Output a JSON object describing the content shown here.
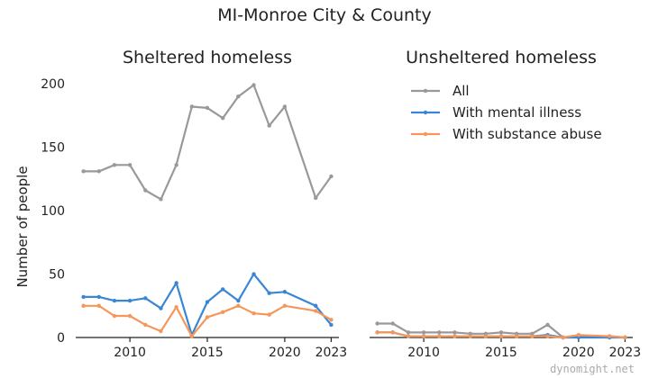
{
  "figure": {
    "title": "MI-Monroe City & County",
    "watermark": "dynomight.net"
  },
  "colors": {
    "All": "#999999",
    "With mental illness": "#3a86d4",
    "With substance abuse": "#f5975a"
  },
  "chart_data": [
    {
      "type": "line",
      "title": "Sheltered homeless",
      "xlabel": "",
      "ylabel": "Number of people",
      "xlim": [
        2006.5,
        2023.5
      ],
      "ylim": [
        0,
        210
      ],
      "xticks": [
        2010,
        2015,
        2020,
        2023
      ],
      "yticks": [
        0,
        50,
        100,
        150,
        200
      ],
      "x": [
        2007,
        2008,
        2009,
        2010,
        2011,
        2012,
        2013,
        2014,
        2015,
        2016,
        2017,
        2018,
        2019,
        2020,
        2022,
        2023
      ],
      "series": [
        {
          "name": "All",
          "values": [
            131,
            131,
            136,
            136,
            116,
            109,
            136,
            182,
            181,
            173,
            190,
            199,
            167,
            182,
            110,
            127
          ]
        },
        {
          "name": "With mental illness",
          "values": [
            32,
            32,
            29,
            29,
            31,
            23,
            43,
            2,
            28,
            38,
            29,
            50,
            35,
            36,
            25,
            10
          ]
        },
        {
          "name": "With substance abuse",
          "values": [
            25,
            25,
            17,
            17,
            10,
            5,
            24,
            1,
            16,
            20,
            25,
            19,
            18,
            25,
            21,
            14
          ]
        }
      ],
      "grid": false,
      "legend": null
    },
    {
      "type": "line",
      "title": "Unsheltered homeless",
      "xlabel": "",
      "ylabel": "",
      "xlim": [
        2006.5,
        2023.5
      ],
      "ylim": [
        0,
        210
      ],
      "xticks": [
        2010,
        2015,
        2020,
        2023
      ],
      "yticks": [],
      "x": [
        2007,
        2008,
        2009,
        2010,
        2011,
        2012,
        2013,
        2014,
        2015,
        2016,
        2017,
        2018,
        2019,
        2020,
        2022,
        2023
      ],
      "series": [
        {
          "name": "All",
          "values": [
            11,
            11,
            4,
            4,
            4,
            4,
            3,
            3,
            4,
            3,
            3,
            10,
            0,
            1,
            1,
            0
          ]
        },
        {
          "name": "With mental illness",
          "values": [
            4,
            4,
            1,
            1,
            1,
            1,
            1,
            1,
            1,
            1,
            1,
            2,
            0,
            0,
            0,
            0
          ]
        },
        {
          "name": "With substance abuse",
          "values": [
            4,
            4,
            1,
            1,
            1,
            1,
            1,
            1,
            1,
            1,
            1,
            1,
            0,
            2,
            1,
            0
          ]
        }
      ],
      "grid": false,
      "legend": {
        "placement": "top-center",
        "entries": [
          "All",
          "With mental illness",
          "With substance abuse"
        ]
      }
    }
  ]
}
